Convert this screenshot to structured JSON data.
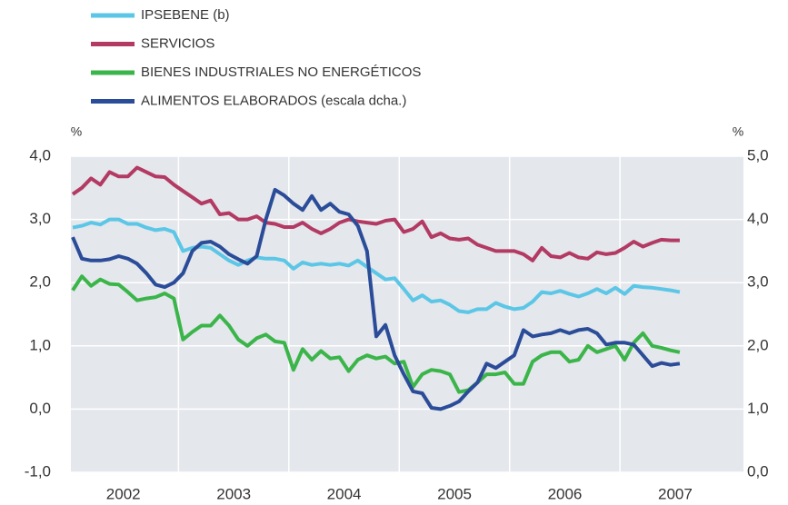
{
  "chart_data": {
    "type": "line",
    "y_label": "%",
    "y2_label": "%",
    "categories": [
      null,
      null,
      null,
      null,
      null,
      null,
      "2002",
      null,
      null,
      null,
      null,
      null,
      null,
      null,
      null,
      null,
      null,
      null,
      "2003",
      null,
      null,
      null,
      null,
      null,
      null,
      null,
      null,
      null,
      null,
      null,
      "2004",
      null,
      null,
      null,
      null,
      null,
      null,
      null,
      null,
      null,
      null,
      null,
      "2005",
      null,
      null,
      null,
      null,
      null,
      null,
      null,
      null,
      null,
      null,
      null,
      "2006",
      null,
      null,
      null,
      null,
      null,
      null,
      null,
      null,
      null,
      null,
      null,
      "2007"
    ],
    "ylim": [
      -1,
      4
    ],
    "yticks": [
      {
        "value": -1,
        "label": "-1,0"
      },
      {
        "value": 0,
        "label": "0,0"
      },
      {
        "value": 1,
        "label": "1,0"
      },
      {
        "value": 2,
        "label": "2,0"
      },
      {
        "value": 3,
        "label": "3,0"
      },
      {
        "value": 4,
        "label": "4,0"
      }
    ],
    "y2lim": [
      0,
      5
    ],
    "y2ticks": [
      {
        "value": 0,
        "label": "0,0"
      },
      {
        "value": 1,
        "label": "1,0"
      },
      {
        "value": 2,
        "label": "2,0"
      },
      {
        "value": 3,
        "label": "3,0"
      },
      {
        "value": 4,
        "label": "4,0"
      },
      {
        "value": 5,
        "label": "5,0"
      }
    ],
    "grid": true,
    "series": [
      {
        "name": "IPSEBENE (b)",
        "color": "#5cc6e6",
        "values": [
          2.87,
          2.9,
          2.95,
          2.92,
          3.0,
          3.0,
          2.93,
          2.93,
          2.87,
          2.83,
          2.85,
          2.8,
          2.5,
          2.55,
          2.57,
          2.55,
          2.45,
          2.35,
          2.28,
          2.35,
          2.4,
          2.38,
          2.38,
          2.35,
          2.22,
          2.32,
          2.28,
          2.3,
          2.28,
          2.3,
          2.27,
          2.35,
          2.25,
          2.15,
          2.05,
          2.07,
          1.9,
          1.72,
          1.8,
          1.7,
          1.72,
          1.65,
          1.55,
          1.53,
          1.58,
          1.58,
          1.68,
          1.62,
          1.58,
          1.6,
          1.7,
          1.85,
          1.83,
          1.87,
          1.82,
          1.78,
          1.83,
          1.9,
          1.83,
          1.92,
          1.82,
          1.95,
          1.93,
          1.92,
          1.9,
          1.88,
          1.85
        ]
      },
      {
        "name": "SERVICIOS",
        "color": "#b33a62",
        "values": [
          3.4,
          3.5,
          3.65,
          3.55,
          3.75,
          3.68,
          3.68,
          3.82,
          3.75,
          3.68,
          3.67,
          3.55,
          3.45,
          3.35,
          3.25,
          3.3,
          3.08,
          3.1,
          3.0,
          3.0,
          3.05,
          2.95,
          2.93,
          2.88,
          2.88,
          2.95,
          2.85,
          2.78,
          2.85,
          2.95,
          3.0,
          2.97,
          2.95,
          2.93,
          2.98,
          3.0,
          2.8,
          2.85,
          2.97,
          2.72,
          2.78,
          2.7,
          2.68,
          2.7,
          2.6,
          2.55,
          2.5,
          2.5,
          2.5,
          2.45,
          2.35,
          2.55,
          2.42,
          2.4,
          2.47,
          2.4,
          2.38,
          2.48,
          2.45,
          2.47,
          2.55,
          2.65,
          2.57,
          2.63,
          2.68,
          2.67,
          2.67
        ]
      },
      {
        "name": "BIENES INDUSTRIALES NO ENERGÉTICOS",
        "color": "#3bb54a",
        "values": [
          1.88,
          2.1,
          1.95,
          2.05,
          1.98,
          1.97,
          1.85,
          1.72,
          1.75,
          1.77,
          1.83,
          1.75,
          1.1,
          1.22,
          1.32,
          1.32,
          1.48,
          1.32,
          1.1,
          1.0,
          1.12,
          1.18,
          1.07,
          1.05,
          0.62,
          0.95,
          0.78,
          0.92,
          0.8,
          0.82,
          0.6,
          0.78,
          0.85,
          0.8,
          0.83,
          0.72,
          0.75,
          0.35,
          0.55,
          0.62,
          0.6,
          0.55,
          0.27,
          0.3,
          0.42,
          0.55,
          0.55,
          0.58,
          0.4,
          0.4,
          0.75,
          0.85,
          0.9,
          0.9,
          0.75,
          0.78,
          1.0,
          0.9,
          0.95,
          1.0,
          0.78,
          1.05,
          1.2,
          1.0,
          0.97,
          0.93,
          0.9
        ]
      },
      {
        "name": "ALIMENTOS ELABORADOS (escala dcha.)",
        "color": "#2b4c98",
        "axis": "y2",
        "values": [
          3.72,
          3.38,
          3.35,
          3.35,
          3.37,
          3.42,
          3.38,
          3.3,
          3.15,
          2.97,
          2.93,
          3.0,
          3.15,
          3.5,
          3.63,
          3.65,
          3.57,
          3.45,
          3.37,
          3.3,
          3.42,
          4.0,
          4.47,
          4.38,
          4.25,
          4.15,
          4.37,
          4.15,
          4.25,
          4.12,
          4.08,
          3.9,
          3.5,
          2.15,
          2.33,
          1.85,
          1.55,
          1.28,
          1.25,
          1.02,
          1.0,
          1.05,
          1.12,
          1.28,
          1.42,
          1.72,
          1.65,
          1.75,
          1.85,
          2.25,
          2.15,
          2.18,
          2.2,
          2.25,
          2.2,
          2.25,
          2.27,
          2.2,
          2.02,
          2.05,
          2.05,
          2.02,
          1.85,
          1.68,
          1.73,
          1.7,
          1.72
        ]
      }
    ]
  }
}
